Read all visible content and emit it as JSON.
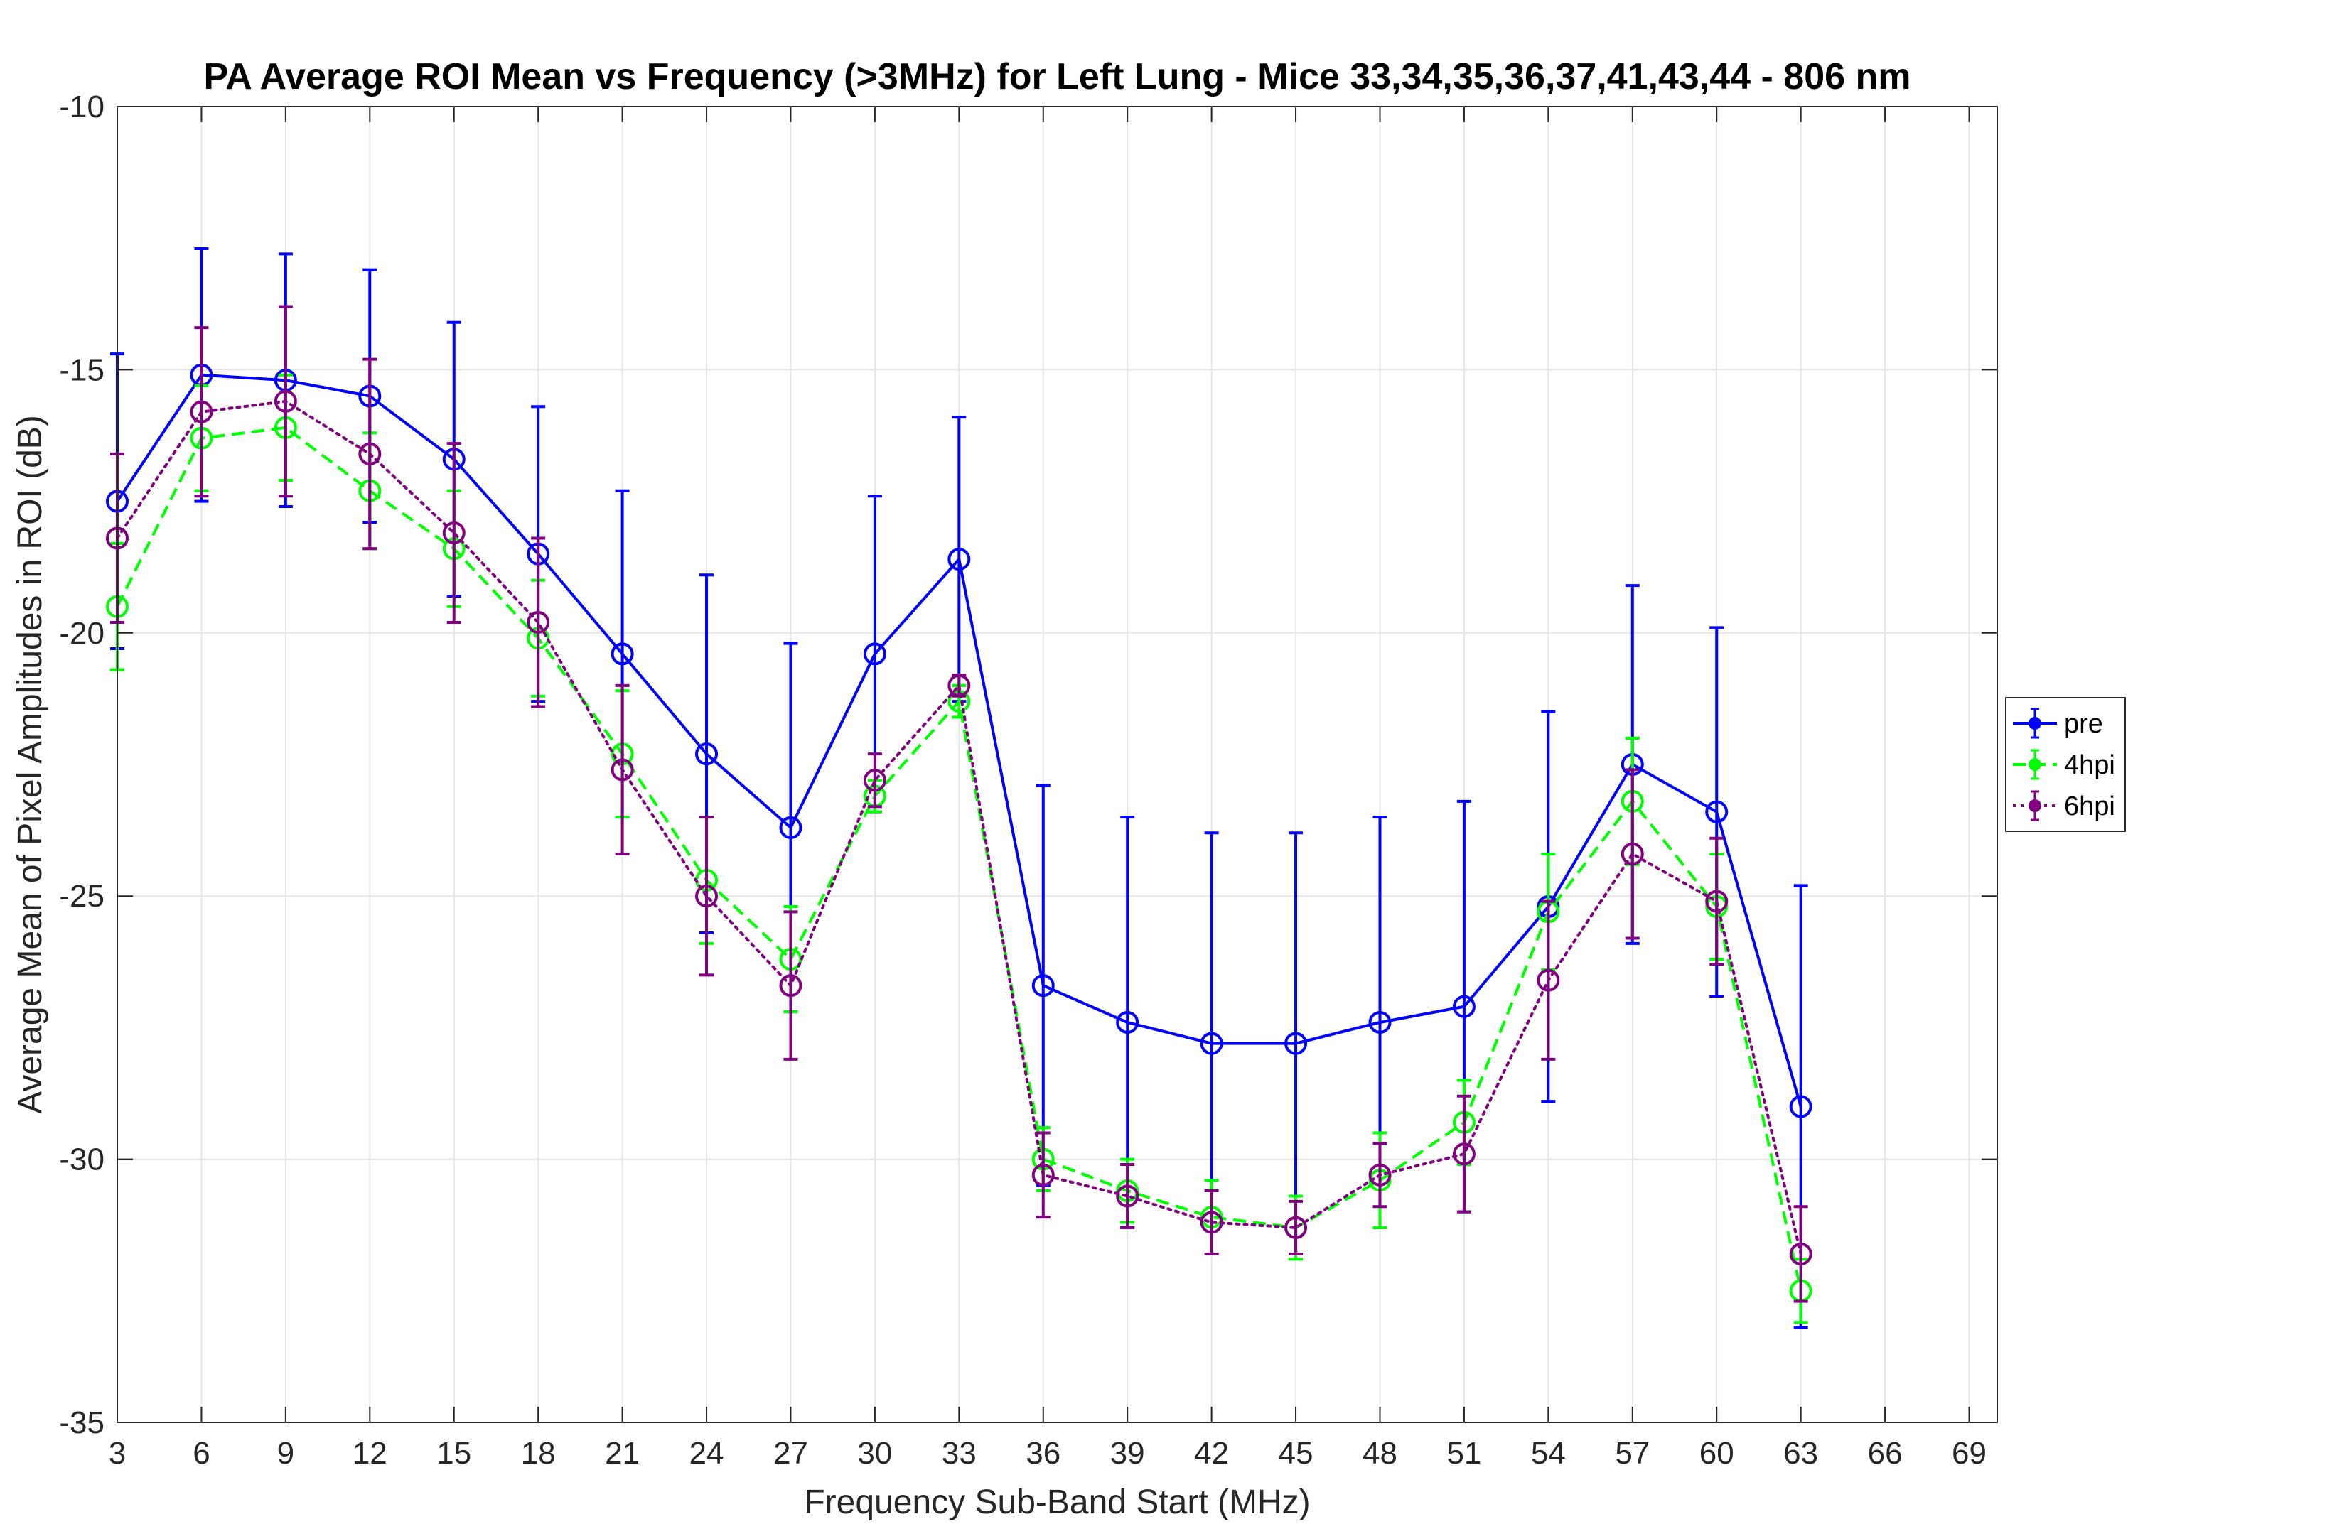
{
  "chart_data": {
    "type": "line",
    "title": "PA Average ROI Mean vs Frequency (>3MHz) for Left Lung - Mice 33,34,35,36,37,41,43,44 - 806 nm",
    "xlabel": "Frequency Sub-Band Start (MHz)",
    "ylabel": "Average Mean of Pixel Amplitudes in ROI (dB)",
    "xlim": [
      3,
      70
    ],
    "ylim": [
      -35,
      -10
    ],
    "xticks": [
      3,
      6,
      9,
      12,
      15,
      18,
      21,
      24,
      27,
      30,
      33,
      36,
      39,
      42,
      45,
      48,
      51,
      54,
      57,
      60,
      63,
      66,
      69
    ],
    "yticks": [
      -10,
      -15,
      -20,
      -25,
      -30,
      -35
    ],
    "grid": true,
    "legend_position": "right",
    "x": [
      3,
      6,
      9,
      12,
      15,
      18,
      21,
      24,
      27,
      30,
      33,
      36,
      39,
      42,
      45,
      48,
      51,
      54,
      57,
      60,
      63
    ],
    "series": [
      {
        "name": "pre",
        "color": "#0000ff",
        "line_style": "solid",
        "values": [
          -17.5,
          -15.1,
          -15.2,
          -15.5,
          -16.7,
          -18.5,
          -20.4,
          -22.3,
          -23.7,
          -20.4,
          -18.6,
          -26.7,
          -27.4,
          -27.8,
          -27.8,
          -27.4,
          -27.1,
          -25.2,
          -22.5,
          -23.4,
          -29.0
        ],
        "error": [
          2.8,
          2.4,
          2.4,
          2.4,
          2.6,
          2.8,
          3.1,
          3.4,
          3.5,
          3.0,
          2.7,
          3.8,
          3.9,
          4.0,
          4.0,
          3.9,
          3.9,
          3.7,
          3.4,
          3.5,
          4.2
        ]
      },
      {
        "name": "4hpi",
        "color": "#00ff00",
        "line_style": "dashed",
        "values": [
          -19.5,
          -16.3,
          -16.1,
          -17.3,
          -18.4,
          -20.1,
          -22.3,
          -24.7,
          -26.2,
          -23.1,
          -21.3,
          -30.0,
          -30.6,
          -31.1,
          -31.3,
          -30.4,
          -29.3,
          -25.3,
          -23.2,
          -25.2,
          -32.5
        ],
        "error": [
          1.2,
          1.0,
          1.0,
          1.1,
          1.1,
          1.1,
          1.2,
          1.2,
          1.0,
          0.3,
          0.3,
          0.6,
          0.6,
          0.7,
          0.6,
          0.9,
          0.8,
          1.1,
          1.2,
          1.0,
          0.6
        ]
      },
      {
        "name": "6hpi",
        "color": "#800080",
        "line_style": "dotted",
        "values": [
          -18.2,
          -15.8,
          -15.6,
          -16.6,
          -18.1,
          -19.8,
          -22.6,
          -25.0,
          -26.7,
          -22.8,
          -21.0,
          -30.3,
          -30.7,
          -31.2,
          -31.3,
          -30.3,
          -29.9,
          -26.6,
          -24.2,
          -25.1,
          -31.8
        ],
        "error": [
          1.6,
          1.6,
          1.8,
          1.8,
          1.7,
          1.6,
          1.6,
          1.5,
          1.4,
          0.5,
          0.2,
          0.8,
          0.6,
          0.6,
          0.5,
          0.6,
          1.1,
          1.5,
          1.6,
          1.2,
          0.9
        ]
      }
    ]
  }
}
